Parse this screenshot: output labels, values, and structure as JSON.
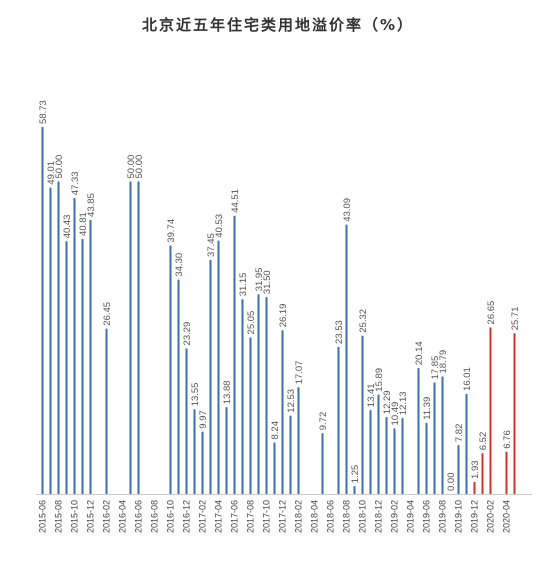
{
  "chart_data": {
    "type": "bar",
    "title": "北京近五年住宅类用地溢价率（%）",
    "xlabel": "",
    "ylabel": "",
    "ylim": [
      0,
      60
    ],
    "grid": false,
    "legend": "none",
    "colors": {
      "blue": "#3a70b0",
      "red": "#c0392b"
    },
    "categories": [
      "2015-06",
      "2015-07",
      "2015-08",
      "2015-09",
      "2015-10",
      "2015-11",
      "2015-12",
      "2016-01",
      "2016-02",
      "2016-03",
      "2016-04",
      "2016-05",
      "2016-06",
      "2016-07",
      "2016-08",
      "2016-09",
      "2016-10",
      "2016-11",
      "2016-12",
      "2017-01",
      "2017-02",
      "2017-03",
      "2017-04",
      "2017-05",
      "2017-06",
      "2017-07",
      "2017-08",
      "2017-09",
      "2017-10",
      "2017-11",
      "2017-12",
      "2018-01",
      "2018-02",
      "2018-03",
      "2018-04",
      "2018-05",
      "2018-06",
      "2018-07",
      "2018-08",
      "2018-09",
      "2018-10",
      "2018-11",
      "2018-12",
      "2019-01",
      "2019-02",
      "2019-03",
      "2019-04",
      "2019-05",
      "2019-06",
      "2019-07",
      "2019-08",
      "2019-09",
      "2019-10",
      "2019-11",
      "2019-12",
      "2020-01",
      "2020-02",
      "2020-03",
      "2020-04",
      "2020-05"
    ],
    "tick_labels": [
      "2015-06",
      "",
      "2015-08",
      "",
      "2015-10",
      "",
      "2015-12",
      "",
      "2016-02",
      "",
      "2016-04",
      "",
      "2016-06",
      "",
      "2016-08",
      "",
      "2016-10",
      "",
      "2016-12",
      "",
      "2017-02",
      "",
      "2017-04",
      "",
      "2017-06",
      "",
      "2017-08",
      "",
      "2017-10",
      "",
      "2017-12",
      "",
      "2018-02",
      "",
      "2018-04",
      "",
      "2018-06",
      "",
      "2018-08",
      "",
      "2018-10",
      "",
      "2018-12",
      "",
      "2019-02",
      "",
      "2019-04",
      "",
      "2019-06",
      "",
      "2019-08",
      "",
      "2019-10",
      "",
      "2019-12",
      "",
      "2020-02",
      "",
      "2020-04",
      ""
    ],
    "values": [
      58.73,
      49.01,
      50.0,
      40.43,
      47.33,
      40.81,
      43.85,
      null,
      26.45,
      null,
      null,
      50.0,
      50.0,
      null,
      null,
      null,
      39.74,
      34.3,
      23.29,
      13.55,
      9.97,
      37.45,
      40.53,
      13.88,
      44.51,
      31.15,
      25.05,
      31.95,
      31.5,
      8.24,
      26.19,
      12.53,
      17.07,
      null,
      null,
      9.72,
      null,
      23.53,
      43.09,
      1.25,
      25.32,
      13.41,
      15.89,
      12.29,
      10.49,
      12.13,
      null,
      20.14,
      11.39,
      17.85,
      18.79,
      0.0,
      7.82,
      16.01,
      1.93,
      6.52,
      26.65,
      null,
      6.76,
      25.71
    ],
    "data_labels": [
      "58.73",
      "49.01",
      "50.00",
      "40.43",
      "47.33",
      "40.81",
      "43.85",
      "",
      "26.45",
      "",
      "",
      "50.00",
      "50.00",
      "",
      "",
      "",
      "39.74",
      "34.30",
      "23.29",
      "13.55",
      "9.97",
      "37.45",
      "40.53",
      "13.88",
      "44.51",
      "31.15",
      "25.05",
      "31.95",
      "31.50",
      "8.24",
      "26.19",
      "12.53",
      "17.07",
      "",
      "",
      "9.72",
      "",
      "23.53",
      "43.09",
      "1.25",
      "25.32",
      "13.41",
      "15.89",
      "12.29",
      "10.49",
      "12.13",
      "",
      "20.14",
      "11.39",
      "17.85",
      "18.79",
      "0.00",
      "7.82",
      "16.01",
      "1.93",
      "6.52",
      "26.65",
      "",
      "6.76",
      "25.71"
    ],
    "highlight_from": "2019-12"
  }
}
